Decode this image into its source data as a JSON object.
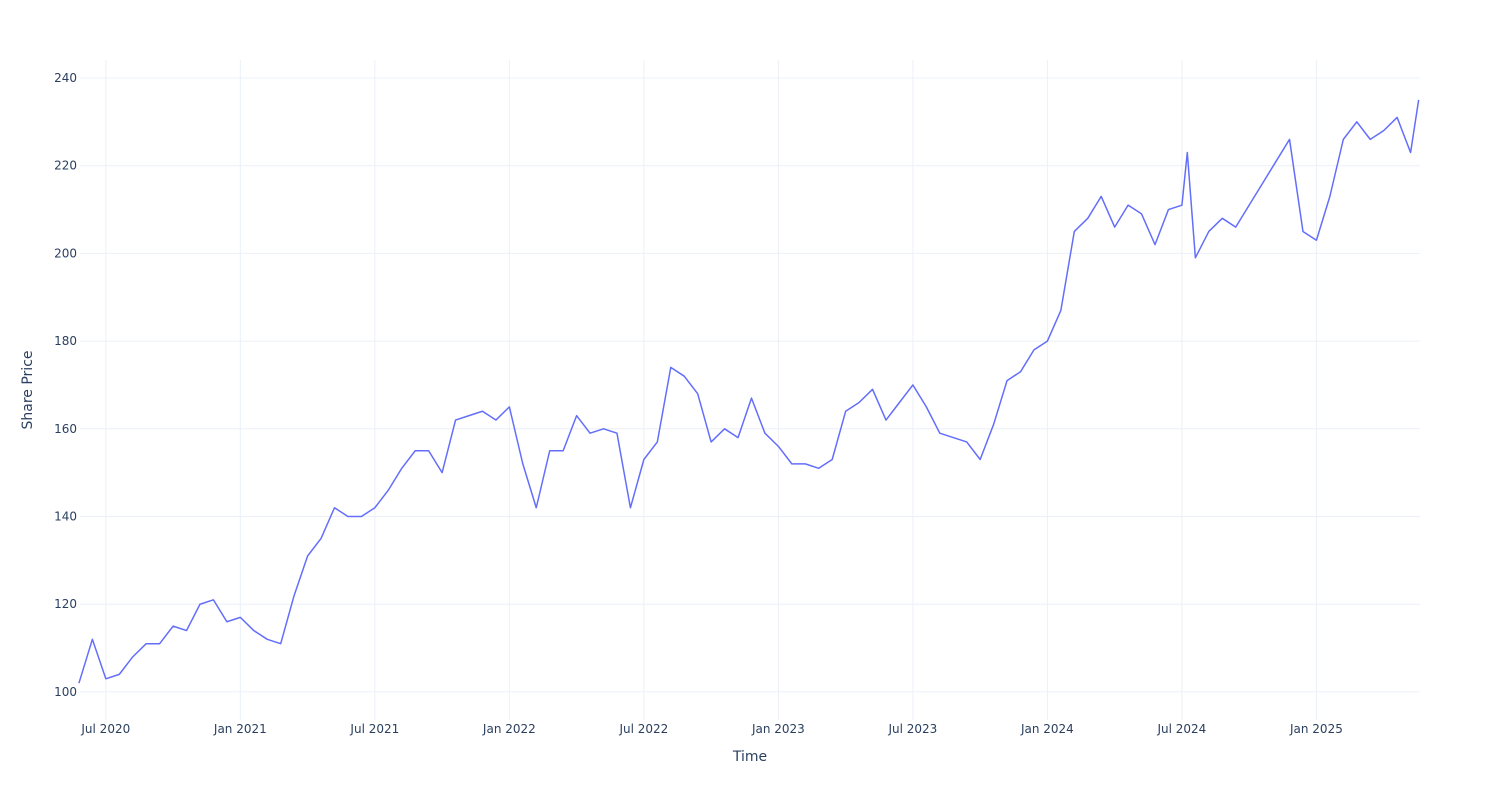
{
  "chart_data": {
    "type": "line",
    "x_label": "Time",
    "y_label": "Share Price",
    "grid": true,
    "xlim": [
      2020.404,
      2025.385
    ],
    "ylim": [
      93.6,
      244.1
    ],
    "xticks": [
      {
        "value": 2020.5,
        "label": "Jul 2020"
      },
      {
        "value": 2021.0,
        "label": "Jan 2021"
      },
      {
        "value": 2021.5,
        "label": "Jul 2021"
      },
      {
        "value": 2022.0,
        "label": "Jan 2022"
      },
      {
        "value": 2022.5,
        "label": "Jul 2022"
      },
      {
        "value": 2023.0,
        "label": "Jan 2023"
      },
      {
        "value": 2023.5,
        "label": "Jul 2023"
      },
      {
        "value": 2024.0,
        "label": "Jan 2024"
      },
      {
        "value": 2024.5,
        "label": "Jul 2024"
      },
      {
        "value": 2025.0,
        "label": "Jan 2025"
      }
    ],
    "yticks": [
      100,
      120,
      140,
      160,
      180,
      200,
      220,
      240
    ],
    "x": [
      2020.4,
      2020.45,
      2020.5,
      2020.55,
      2020.6,
      2020.65,
      2020.7,
      2020.75,
      2020.8,
      2020.85,
      2020.9,
      2020.95,
      2021.0,
      2021.05,
      2021.1,
      2021.15,
      2021.2,
      2021.25,
      2021.3,
      2021.35,
      2021.4,
      2021.45,
      2021.5,
      2021.55,
      2021.6,
      2021.65,
      2021.7,
      2021.75,
      2021.8,
      2021.85,
      2021.9,
      2021.95,
      2022.0,
      2022.05,
      2022.1,
      2022.15,
      2022.2,
      2022.25,
      2022.3,
      2022.35,
      2022.4,
      2022.45,
      2022.5,
      2022.55,
      2022.6,
      2022.65,
      2022.7,
      2022.75,
      2022.8,
      2022.85,
      2022.9,
      2022.95,
      2023.0,
      2023.05,
      2023.1,
      2023.15,
      2023.2,
      2023.25,
      2023.3,
      2023.35,
      2023.4,
      2023.45,
      2023.5,
      2023.55,
      2023.6,
      2023.65,
      2023.7,
      2023.75,
      2023.8,
      2023.85,
      2023.9,
      2023.95,
      2024.0,
      2024.05,
      2024.1,
      2024.15,
      2024.2,
      2024.25,
      2024.3,
      2024.35,
      2024.4,
      2024.45,
      2024.5,
      2024.52,
      2024.55,
      2024.6,
      2024.65,
      2024.7,
      2024.75,
      2024.8,
      2024.85,
      2024.9,
      2024.95,
      2025.0,
      2025.05,
      2025.1,
      2025.15,
      2025.2,
      2025.25,
      2025.3,
      2025.35,
      2025.38
    ],
    "series": [
      {
        "color": "#636efa",
        "values": [
          102,
          112,
          103,
          104,
          108,
          111,
          111,
          115,
          114,
          120,
          121,
          116,
          117,
          114,
          112,
          111,
          122,
          131,
          135,
          142,
          140,
          140,
          142,
          146,
          151,
          155,
          155,
          150,
          162,
          163,
          164,
          162,
          165,
          152,
          142,
          155,
          155,
          163,
          159,
          160,
          159,
          142,
          153,
          157,
          174,
          172,
          168,
          157,
          160,
          158,
          167,
          159,
          156,
          152,
          152,
          151,
          153,
          164,
          166,
          169,
          162,
          166,
          170,
          165,
          159,
          158,
          157,
          153,
          161,
          171,
          173,
          178,
          180,
          187,
          205,
          208,
          213,
          206,
          211,
          209,
          202,
          210,
          211,
          223,
          199,
          205,
          208,
          206,
          211,
          216,
          221,
          226,
          205,
          203,
          213,
          226,
          230,
          226,
          228,
          231,
          223,
          235
        ]
      }
    ]
  }
}
